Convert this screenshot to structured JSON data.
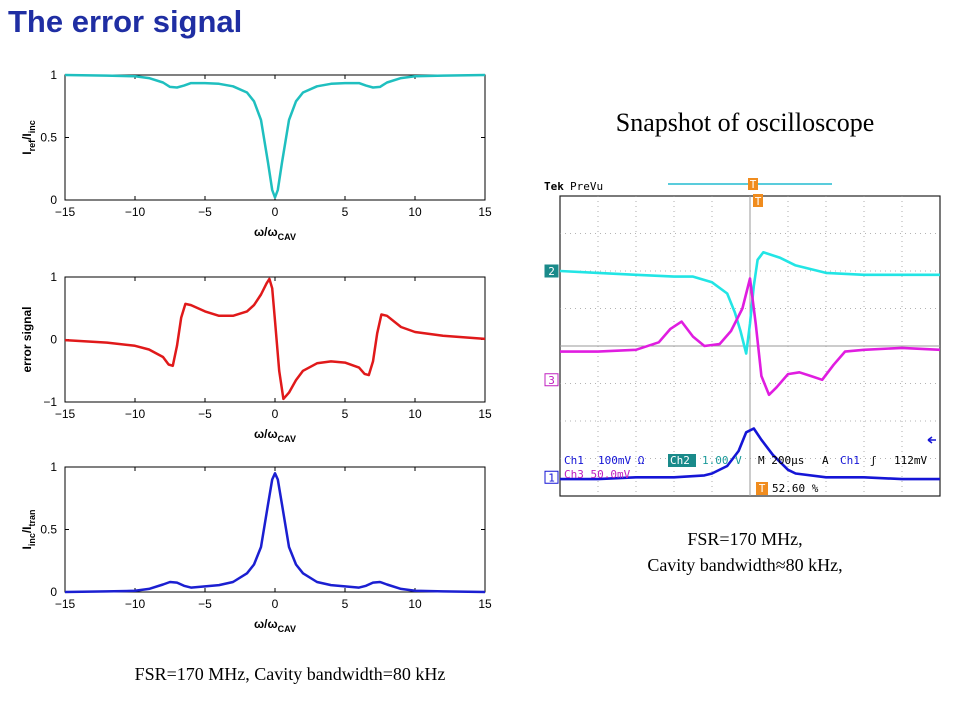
{
  "slide": {
    "title": "The error signal",
    "scope_title": "Snapshot of oscilloscope",
    "scope_caption_line1": "FSR=170 MHz,",
    "scope_caption_line2": "Cavity bandwidth≈80 kHz,",
    "plots_caption": "FSR=170 MHz, Cavity bandwidth=80 kHz"
  },
  "chart_data": [
    {
      "type": "line",
      "ylabel": "I_ref/I_inc",
      "xlabel": "ω/ω_CAV",
      "xlim": [
        -15,
        15
      ],
      "ylim": [
        0,
        1
      ],
      "xticks": [
        -15,
        -10,
        -5,
        0,
        5,
        10,
        15
      ],
      "yticks": [
        0,
        0.5,
        1
      ],
      "color": "#1fbfbf",
      "series": [
        {
          "x": [
            -15,
            -12,
            -10,
            -9,
            -8,
            -7.5,
            -7,
            -6.5,
            -6,
            -5,
            -4,
            -3,
            -2,
            -1.5,
            -1,
            -0.5,
            -0.2,
            0,
            0.2,
            0.5,
            1,
            1.5,
            2,
            3,
            4,
            5,
            6,
            6.5,
            7,
            7.5,
            8,
            9,
            10,
            12,
            15
          ],
          "y": [
            1.0,
            0.995,
            0.99,
            0.975,
            0.94,
            0.905,
            0.9,
            0.915,
            0.935,
            0.935,
            0.93,
            0.91,
            0.86,
            0.79,
            0.64,
            0.3,
            0.08,
            0.02,
            0.08,
            0.3,
            0.64,
            0.79,
            0.86,
            0.91,
            0.93,
            0.935,
            0.935,
            0.915,
            0.9,
            0.905,
            0.94,
            0.975,
            0.99,
            0.995,
            1.0
          ]
        }
      ]
    },
    {
      "type": "line",
      "ylabel": "error signal",
      "xlabel": "ω/ω_CAV",
      "xlim": [
        -15,
        15
      ],
      "ylim": [
        -1,
        1
      ],
      "xticks": [
        -15,
        -10,
        -5,
        0,
        5,
        10,
        15
      ],
      "yticks": [
        -1,
        0,
        1
      ],
      "color": "#e0191a",
      "series": [
        {
          "x": [
            -15,
            -12,
            -10,
            -9,
            -8,
            -7.6,
            -7.3,
            -7,
            -6.7,
            -6.4,
            -6,
            -5,
            -4,
            -3,
            -2,
            -1.5,
            -1,
            -0.6,
            -0.4,
            -0.2,
            0,
            0.3,
            0.6,
            1,
            1.5,
            2,
            3,
            4,
            5,
            6,
            6.4,
            6.7,
            7,
            7.3,
            7.6,
            8,
            9,
            10,
            12,
            15
          ],
          "y": [
            -0.01,
            -0.05,
            -0.1,
            -0.16,
            -0.28,
            -0.4,
            -0.42,
            -0.1,
            0.35,
            0.57,
            0.55,
            0.45,
            0.38,
            0.38,
            0.45,
            0.55,
            0.72,
            0.9,
            0.97,
            0.82,
            0.3,
            -0.5,
            -0.95,
            -0.85,
            -0.65,
            -0.5,
            -0.38,
            -0.35,
            -0.37,
            -0.45,
            -0.55,
            -0.57,
            -0.35,
            0.1,
            0.4,
            0.38,
            0.2,
            0.12,
            0.06,
            0.01
          ]
        }
      ]
    },
    {
      "type": "line",
      "ylabel": "I_inc/I_tran",
      "xlabel": "ω/ω_CAV",
      "xlim": [
        -15,
        15
      ],
      "ylim": [
        0,
        1
      ],
      "xticks": [
        -15,
        -10,
        -5,
        0,
        5,
        10,
        15
      ],
      "yticks": [
        0,
        0.5,
        1
      ],
      "color": "#1b1fd1",
      "series": [
        {
          "x": [
            -15,
            -12,
            -10,
            -9,
            -8,
            -7.5,
            -7,
            -6.5,
            -6,
            -5,
            -4,
            -3,
            -2,
            -1.5,
            -1,
            -0.5,
            -0.2,
            0,
            0.2,
            0.5,
            1,
            1.5,
            2,
            3,
            4,
            5,
            6,
            6.5,
            7,
            7.5,
            8,
            9,
            10,
            12,
            15
          ],
          "y": [
            0.0,
            0.005,
            0.01,
            0.025,
            0.06,
            0.08,
            0.075,
            0.05,
            0.035,
            0.045,
            0.055,
            0.08,
            0.15,
            0.22,
            0.36,
            0.7,
            0.9,
            0.95,
            0.9,
            0.7,
            0.36,
            0.22,
            0.15,
            0.08,
            0.055,
            0.045,
            0.035,
            0.05,
            0.075,
            0.08,
            0.06,
            0.025,
            0.01,
            0.005,
            0.0
          ]
        }
      ]
    },
    {
      "type": "line",
      "title": "Snapshot of oscilloscope",
      "xlim": [
        -5,
        5
      ],
      "ylim": [
        -4,
        4
      ],
      "grid": true,
      "background": "#ffffff",
      "series": [
        {
          "name": "Ch2",
          "color": "#22e5e5",
          "x": [
            -5,
            -4,
            -3,
            -2,
            -1.5,
            -1,
            -0.6,
            -0.4,
            -0.25,
            -0.1,
            0,
            0.1,
            0.2,
            0.35,
            0.5,
            0.8,
            1.2,
            2,
            3,
            4,
            5
          ],
          "y": [
            2.0,
            1.95,
            1.9,
            1.85,
            1.85,
            1.7,
            1.4,
            0.9,
            0.4,
            -0.2,
            0.6,
            1.6,
            2.3,
            2.5,
            2.45,
            2.35,
            2.15,
            1.95,
            1.9,
            1.9,
            1.9
          ]
        },
        {
          "name": "Ch3",
          "color": "#e01de0",
          "x": [
            -5,
            -4,
            -3,
            -2.4,
            -2.1,
            -1.8,
            -1.5,
            -1.2,
            -0.8,
            -0.5,
            -0.2,
            0,
            0.15,
            0.3,
            0.5,
            0.7,
            1,
            1.3,
            1.6,
            1.9,
            2.2,
            2.5,
            3,
            4,
            5
          ],
          "y": [
            -0.15,
            -0.15,
            -0.1,
            0.1,
            0.45,
            0.65,
            0.25,
            0.0,
            0.05,
            0.4,
            1.0,
            1.8,
            0.6,
            -0.8,
            -1.3,
            -1.1,
            -0.75,
            -0.7,
            -0.8,
            -0.9,
            -0.5,
            -0.15,
            -0.1,
            -0.05,
            -0.1
          ]
        },
        {
          "name": "Ch1",
          "color": "#1515d6",
          "x": [
            -5,
            -4,
            -3,
            -2,
            -1.2,
            -1,
            -0.6,
            -0.3,
            -0.1,
            0.1,
            0.3,
            0.6,
            1,
            1.2,
            2,
            3,
            4,
            5
          ],
          "y": [
            -3.55,
            -3.55,
            -3.5,
            -3.5,
            -3.45,
            -3.4,
            -3.2,
            -2.8,
            -2.3,
            -2.2,
            -2.5,
            -2.9,
            -3.3,
            -3.4,
            -3.5,
            -3.5,
            -3.55,
            -3.55
          ]
        }
      ],
      "labels": {
        "brand": "Tek",
        "mode": "PreVu",
        "trigger_marker": "T",
        "ch2_marker": "2",
        "ch3_marker": "3",
        "ch1_marker": "1",
        "ch1_scale_name": "Ch1",
        "ch1_scale": "100mV Ω",
        "ch2_scale_name": "Ch2",
        "ch2_scale": "1.00 V",
        "ch3_scale": "Ch3  50.0mV",
        "timebase": "M 200µs",
        "acq": "A",
        "trig_src": "Ch1",
        "trig_symbol": "ʃ",
        "trig_level": "112mV",
        "position": "52.60 %"
      }
    }
  ]
}
